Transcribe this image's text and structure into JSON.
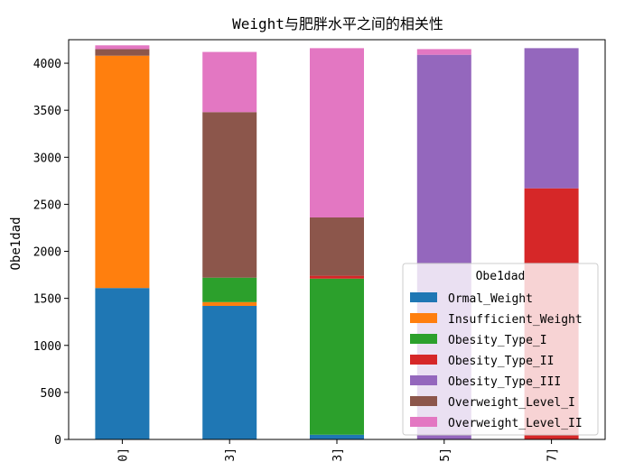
{
  "chart_data": {
    "type": "bar",
    "stacked": true,
    "title": "Weight与肥胖水平之间的相关性",
    "xlabel": "",
    "ylabel": "Obe1dad",
    "ylim": [
      0,
      4250
    ],
    "yticks": [
      0,
      500,
      1000,
      1500,
      2000,
      2500,
      3000,
      3500,
      4000
    ],
    "categories": [
      "0]",
      "3]",
      "3]",
      "5]",
      "7]"
    ],
    "legend": {
      "title": "Obe1dad",
      "placement": "lower-right"
    },
    "grid": false,
    "series": [
      {
        "name": "Ormal_Weight",
        "color": "#1f77b4",
        "values": [
          1610,
          1420,
          50,
          0,
          0
        ]
      },
      {
        "name": "Insufficient_Weight",
        "color": "#ff7f0e",
        "values": [
          2470,
          40,
          0,
          0,
          0
        ]
      },
      {
        "name": "Obesity_Type_I",
        "color": "#2ca02c",
        "values": [
          0,
          260,
          1660,
          0,
          0
        ]
      },
      {
        "name": "Obesity_Type_II",
        "color": "#d62728",
        "values": [
          0,
          0,
          30,
          0,
          2670
        ]
      },
      {
        "name": "Obesity_Type_III",
        "color": "#9467bd",
        "values": [
          0,
          0,
          0,
          4090,
          1490
        ]
      },
      {
        "name": "Overweight_Level_I",
        "color": "#8c564b",
        "values": [
          70,
          1760,
          620,
          0,
          0
        ]
      },
      {
        "name": "Overweight_Level_II",
        "color": "#e377c2",
        "values": [
          40,
          640,
          1800,
          60,
          0
        ]
      }
    ]
  }
}
